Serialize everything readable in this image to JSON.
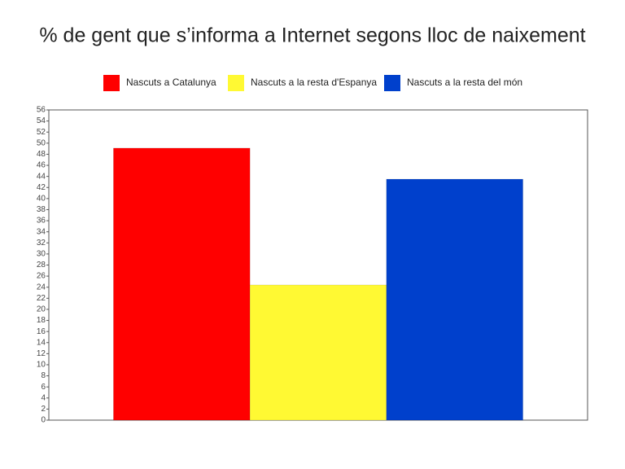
{
  "chart_data": {
    "type": "bar",
    "title": "% de gent que s’informa a Internet segons lloc de naixement",
    "categories": [
      null
    ],
    "series": [
      {
        "name": "Nascuts a Catalunya",
        "color": "#ff0000",
        "values": [
          49.1
        ]
      },
      {
        "name": "Nascuts a la resta d'Espanya",
        "color": "#fff933",
        "values": [
          24.4
        ]
      },
      {
        "name": "Nascuts a la resta del món",
        "color": "#0040cc",
        "values": [
          43.5
        ]
      }
    ],
    "ylim": [
      0,
      56
    ],
    "yticks": [
      0,
      2,
      4,
      6,
      8,
      10,
      12,
      14,
      16,
      18,
      20,
      22,
      24,
      26,
      28,
      30,
      32,
      34,
      36,
      38,
      40,
      42,
      44,
      46,
      48,
      50,
      52,
      54,
      56
    ],
    "legend": "top"
  }
}
